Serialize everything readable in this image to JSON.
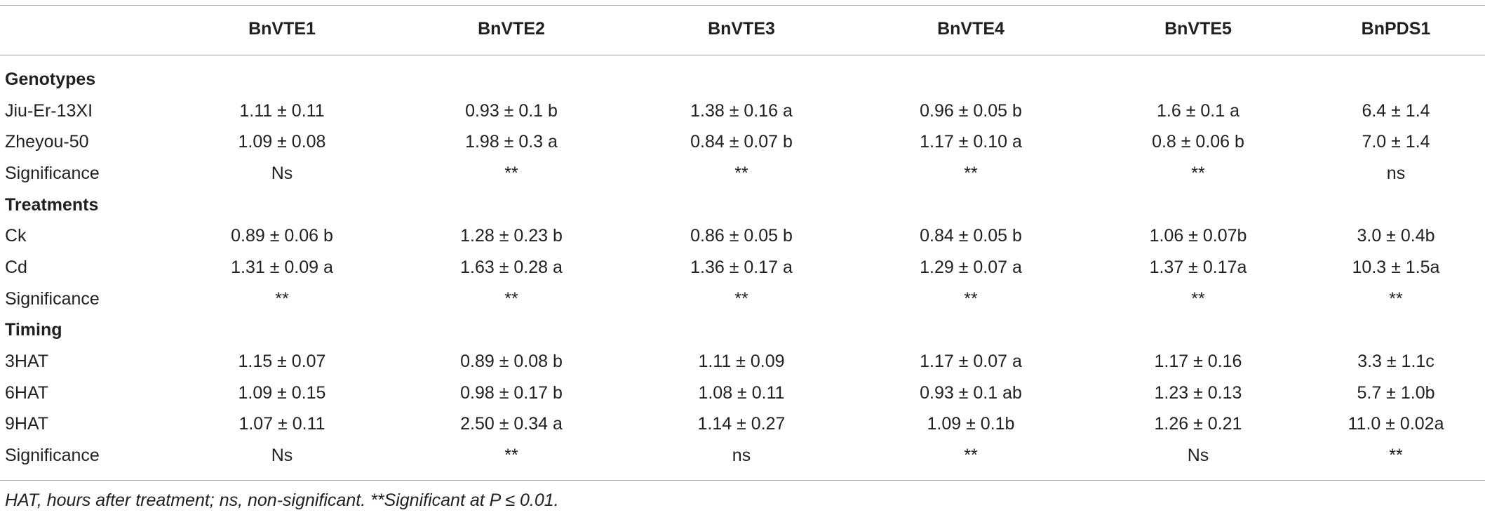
{
  "table": {
    "columns": [
      "BnVTE1",
      "BnVTE2",
      "BnVTE3",
      "BnVTE4",
      "BnVTE5",
      "BnPDS1"
    ],
    "sections": [
      {
        "title": "Genotypes",
        "rows": [
          {
            "label": "Jiu-Er-13XI",
            "cells": [
              "1.11 ± 0.11",
              "0.93 ± 0.1 b",
              "1.38 ± 0.16 a",
              "0.96 ± 0.05 b",
              "1.6 ± 0.1 a",
              "6.4 ± 1.4"
            ]
          },
          {
            "label": "Zheyou-50",
            "cells": [
              "1.09 ± 0.08",
              "1.98 ± 0.3 a",
              "0.84 ± 0.07 b",
              "1.17 ± 0.10 a",
              "0.8 ± 0.06 b",
              "7.0 ± 1.4"
            ]
          },
          {
            "label": "Significance",
            "cells": [
              "Ns",
              "**",
              "**",
              "**",
              "**",
              "ns"
            ]
          }
        ]
      },
      {
        "title": "Treatments",
        "rows": [
          {
            "label": "Ck",
            "cells": [
              "0.89 ± 0.06 b",
              "1.28 ± 0.23 b",
              "0.86 ± 0.05 b",
              "0.84 ± 0.05 b",
              "1.06 ± 0.07b",
              "3.0 ± 0.4b"
            ]
          },
          {
            "label": "Cd",
            "cells": [
              "1.31 ± 0.09 a",
              "1.63 ± 0.28 a",
              "1.36 ± 0.17 a",
              "1.29 ± 0.07 a",
              "1.37 ± 0.17a",
              "10.3 ± 1.5a"
            ]
          },
          {
            "label": "Significance",
            "cells": [
              "**",
              "**",
              "**",
              "**",
              "**",
              "**"
            ]
          }
        ]
      },
      {
        "title": "Timing",
        "rows": [
          {
            "label": "3HAT",
            "cells": [
              "1.15 ± 0.07",
              "0.89 ± 0.08 b",
              "1.11 ± 0.09",
              "1.17 ± 0.07 a",
              "1.17 ± 0.16",
              "3.3 ± 1.1c"
            ]
          },
          {
            "label": "6HAT",
            "cells": [
              "1.09 ± 0.15",
              "0.98 ± 0.17 b",
              "1.08 ± 0.11",
              "0.93 ± 0.1 ab",
              "1.23 ± 0.13",
              "5.7 ± 1.0b"
            ]
          },
          {
            "label": "9HAT",
            "cells": [
              "1.07 ± 0.11",
              "2.50 ± 0.34 a",
              "1.14 ± 0.27",
              "1.09 ± 0.1b",
              "1.26 ± 0.21",
              "11.0 ± 0.02a"
            ]
          },
          {
            "label": "Significance",
            "cells": [
              "Ns",
              "**",
              "ns",
              "**",
              "Ns",
              "**"
            ]
          }
        ]
      }
    ],
    "footnote": "HAT, hours after treatment; ns, non-significant. **Significant at P ≤ 0.01."
  }
}
